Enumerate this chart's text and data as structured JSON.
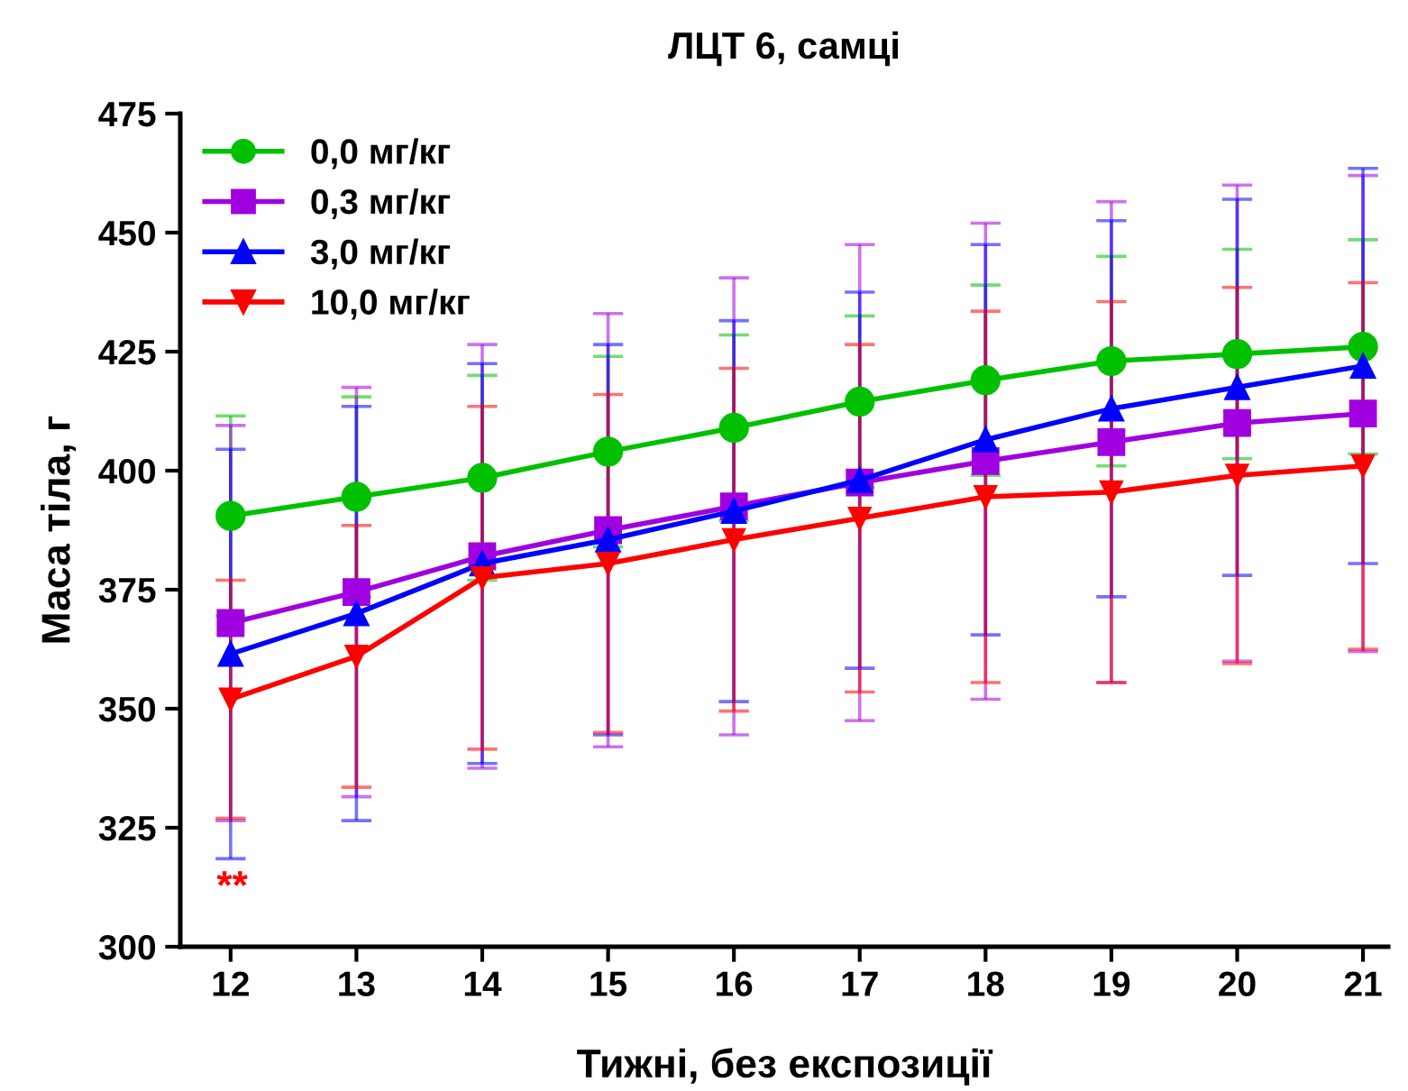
{
  "chart_data": {
    "type": "line",
    "title": "ЛЦТ 6, самці",
    "xlabel": "Тижні, без експозиції",
    "ylabel": "Маса тіла, г",
    "x": [
      12,
      13,
      14,
      15,
      16,
      17,
      18,
      19,
      20,
      21
    ],
    "xlim": [
      11.6,
      21.2
    ],
    "xticks": [
      12,
      13,
      14,
      15,
      16,
      17,
      18,
      19,
      20,
      21
    ],
    "ylim": [
      300,
      475
    ],
    "yticks": [
      300,
      325,
      350,
      375,
      400,
      425,
      450,
      475
    ],
    "grid": false,
    "legend": "top left",
    "series": [
      {
        "name": "0,0 мг/кг",
        "color": "#00c000",
        "marker": "circle",
        "values": [
          390.5,
          394.5,
          398.5,
          404,
          409,
          414.5,
          419,
          423,
          424.5,
          426
        ],
        "errors": [
          21,
          21,
          21.5,
          20,
          19.5,
          18,
          20,
          22,
          22,
          22.5
        ]
      },
      {
        "name": "0,3 мг/кг",
        "color": "#a000e0",
        "marker": "square",
        "values": [
          368,
          374.5,
          382,
          387.5,
          392.5,
          397.5,
          402,
          406,
          410,
          412
        ],
        "errors": [
          41.5,
          43,
          44.5,
          45.5,
          48,
          50,
          50,
          50.5,
          50,
          50
        ]
      },
      {
        "name": "3,0 мг/кг",
        "color": "#0000ff",
        "marker": "triangle",
        "values": [
          361.5,
          370,
          380.5,
          385.5,
          391.5,
          398,
          406.5,
          413,
          417.5,
          422
        ],
        "errors": [
          43,
          43.5,
          42,
          41,
          40,
          39.5,
          41,
          39.5,
          39.5,
          41.5
        ]
      },
      {
        "name": "10,0 мг/кг",
        "color": "#ff0000",
        "marker": "triangle_down",
        "values": [
          352,
          361,
          377.5,
          380.5,
          385.5,
          390,
          394.5,
          395.5,
          399,
          401
        ],
        "errors": [
          25,
          27.5,
          36,
          35.5,
          36,
          36.5,
          39,
          40,
          39.5,
          38.5
        ]
      }
    ],
    "annotations": [
      "**"
    ]
  }
}
